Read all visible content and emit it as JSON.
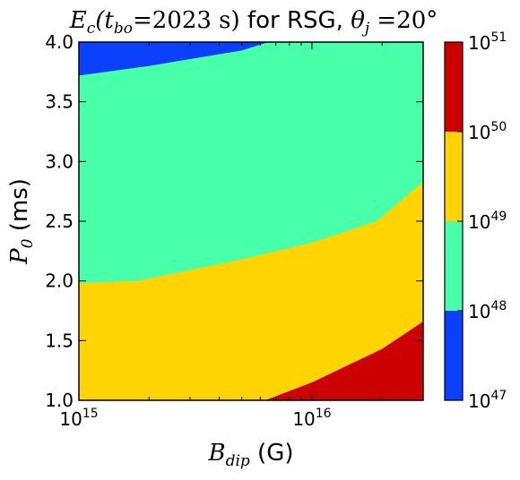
{
  "chart_data": {
    "type": "heatmap",
    "title": {
      "prefix": "E",
      "prefix_sub": "c",
      "arg_open": "(t",
      "arg_sub": "bo",
      "arg_value": "=2023 s)",
      "middle": " for RSG, ",
      "theta": "θ",
      "theta_sub": "j",
      "theta_value": " =20°"
    },
    "xlabel": {
      "symbol": "B",
      "sub": "dip",
      "unit": " (G)"
    },
    "ylabel": {
      "symbol": "P",
      "sub": "0",
      "unit": " (ms)"
    },
    "x_scale": "log",
    "xlim": [
      1000000000000000.0,
      3e+16
    ],
    "ylim": [
      1.0,
      4.0
    ],
    "x_ticks": [
      {
        "value": 1000000000000000.0,
        "base": "10",
        "exp": "15"
      },
      {
        "value": 1e+16,
        "base": "10",
        "exp": "16"
      }
    ],
    "y_ticks": [
      "1.0",
      "1.5",
      "2.0",
      "2.5",
      "3.0",
      "3.5",
      "4.0"
    ],
    "colorbar": {
      "scale": "log",
      "levels": [
        {
          "base": "10",
          "exp": "47"
        },
        {
          "base": "10",
          "exp": "48"
        },
        {
          "base": "10",
          "exp": "49"
        },
        {
          "base": "10",
          "exp": "50"
        },
        {
          "base": "10",
          "exp": "51"
        }
      ],
      "colors": [
        "#0b40ff",
        "#48ffaa",
        "#ffd400",
        "#cc0000"
      ]
    },
    "contour_boundaries": [
      {
        "between": [
          "1e47",
          "1e48"
        ],
        "points": [
          [
            1000000000000000.0,
            3.72
          ],
          [
            2000000000000000.0,
            3.8
          ],
          [
            5000000000000000.0,
            3.93
          ],
          [
            6500000000000000.0,
            4.0
          ]
        ]
      },
      {
        "between": [
          "1e48",
          "1e49"
        ],
        "points": [
          [
            1000000000000000.0,
            1.98
          ],
          [
            1800000000000000.0,
            2.0
          ],
          [
            5000000000000000.0,
            2.18
          ],
          [
            1e+16,
            2.32
          ],
          [
            1.9e+16,
            2.5
          ],
          [
            3e+16,
            2.83
          ]
        ]
      },
      {
        "between": [
          "1e49",
          "1e50"
        ],
        "points": [
          [
            6300000000000000.0,
            1.0
          ],
          [
            1e+16,
            1.15
          ],
          [
            2e+16,
            1.43
          ],
          [
            3e+16,
            1.66
          ]
        ]
      }
    ]
  }
}
